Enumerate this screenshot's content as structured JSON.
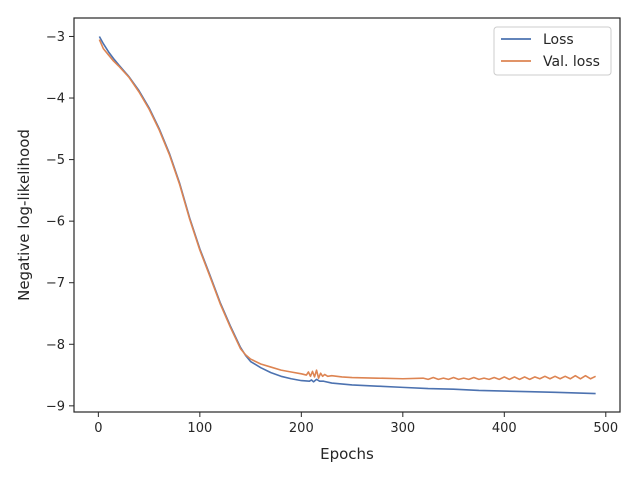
{
  "chart_data": {
    "type": "line",
    "title": "",
    "xlabel": "Epochs",
    "ylabel": "Negative log-likelihood",
    "xlim": [
      -24,
      514
    ],
    "ylim": [
      -9.1,
      -2.7
    ],
    "xticks": [
      0,
      100,
      200,
      300,
      400,
      500
    ],
    "yticks": [
      -9,
      -8,
      -7,
      -6,
      -5,
      -4,
      -3
    ],
    "tick_labels_x": [
      "0",
      "100",
      "200",
      "300",
      "400",
      "500"
    ],
    "tick_labels_y": [
      "−9",
      "−8",
      "−7",
      "−6",
      "−5",
      "−4",
      "−3"
    ],
    "grid": false,
    "legend_position": "top-right",
    "series": [
      {
        "name": "Loss",
        "color": "#4c72b0",
        "points": [
          [
            1,
            -3.0
          ],
          [
            5,
            -3.12
          ],
          [
            10,
            -3.25
          ],
          [
            15,
            -3.36
          ],
          [
            20,
            -3.46
          ],
          [
            30,
            -3.65
          ],
          [
            40,
            -3.88
          ],
          [
            50,
            -4.16
          ],
          [
            60,
            -4.5
          ],
          [
            70,
            -4.9
          ],
          [
            80,
            -5.38
          ],
          [
            90,
            -5.95
          ],
          [
            100,
            -6.45
          ],
          [
            110,
            -6.88
          ],
          [
            120,
            -7.32
          ],
          [
            130,
            -7.7
          ],
          [
            140,
            -8.05
          ],
          [
            145,
            -8.18
          ],
          [
            150,
            -8.28
          ],
          [
            160,
            -8.38
          ],
          [
            170,
            -8.46
          ],
          [
            180,
            -8.52
          ],
          [
            190,
            -8.56
          ],
          [
            200,
            -8.59
          ],
          [
            208,
            -8.6
          ],
          [
            210,
            -8.58
          ],
          [
            212,
            -8.61
          ],
          [
            215,
            -8.57
          ],
          [
            218,
            -8.6
          ],
          [
            222,
            -8.6
          ],
          [
            230,
            -8.63
          ],
          [
            250,
            -8.66
          ],
          [
            275,
            -8.68
          ],
          [
            300,
            -8.7
          ],
          [
            325,
            -8.72
          ],
          [
            350,
            -8.73
          ],
          [
            375,
            -8.75
          ],
          [
            400,
            -8.76
          ],
          [
            425,
            -8.77
          ],
          [
            450,
            -8.78
          ],
          [
            470,
            -8.79
          ],
          [
            490,
            -8.8
          ]
        ]
      },
      {
        "name": "Val. loss",
        "color": "#dd8452",
        "points": [
          [
            1,
            -3.05
          ],
          [
            5,
            -3.2
          ],
          [
            10,
            -3.3
          ],
          [
            15,
            -3.4
          ],
          [
            20,
            -3.48
          ],
          [
            30,
            -3.66
          ],
          [
            40,
            -3.9
          ],
          [
            50,
            -4.18
          ],
          [
            60,
            -4.52
          ],
          [
            70,
            -4.92
          ],
          [
            80,
            -5.4
          ],
          [
            90,
            -5.97
          ],
          [
            100,
            -6.47
          ],
          [
            110,
            -6.9
          ],
          [
            120,
            -7.34
          ],
          [
            130,
            -7.72
          ],
          [
            140,
            -8.07
          ],
          [
            145,
            -8.17
          ],
          [
            150,
            -8.24
          ],
          [
            160,
            -8.32
          ],
          [
            170,
            -8.37
          ],
          [
            180,
            -8.42
          ],
          [
            190,
            -8.45
          ],
          [
            200,
            -8.48
          ],
          [
            205,
            -8.5
          ],
          [
            207,
            -8.45
          ],
          [
            209,
            -8.52
          ],
          [
            211,
            -8.44
          ],
          [
            213,
            -8.53
          ],
          [
            215,
            -8.42
          ],
          [
            217,
            -8.55
          ],
          [
            219,
            -8.47
          ],
          [
            221,
            -8.52
          ],
          [
            223,
            -8.49
          ],
          [
            226,
            -8.52
          ],
          [
            230,
            -8.51
          ],
          [
            240,
            -8.53
          ],
          [
            250,
            -8.54
          ],
          [
            275,
            -8.55
          ],
          [
            300,
            -8.56
          ],
          [
            320,
            -8.55
          ],
          [
            325,
            -8.57
          ],
          [
            330,
            -8.54
          ],
          [
            335,
            -8.57
          ],
          [
            340,
            -8.55
          ],
          [
            345,
            -8.57
          ],
          [
            350,
            -8.54
          ],
          [
            355,
            -8.57
          ],
          [
            360,
            -8.55
          ],
          [
            365,
            -8.57
          ],
          [
            370,
            -8.54
          ],
          [
            375,
            -8.57
          ],
          [
            380,
            -8.55
          ],
          [
            385,
            -8.57
          ],
          [
            390,
            -8.54
          ],
          [
            395,
            -8.57
          ],
          [
            400,
            -8.53
          ],
          [
            405,
            -8.57
          ],
          [
            410,
            -8.53
          ],
          [
            415,
            -8.57
          ],
          [
            420,
            -8.53
          ],
          [
            425,
            -8.57
          ],
          [
            430,
            -8.53
          ],
          [
            435,
            -8.56
          ],
          [
            440,
            -8.52
          ],
          [
            445,
            -8.56
          ],
          [
            450,
            -8.52
          ],
          [
            455,
            -8.56
          ],
          [
            460,
            -8.52
          ],
          [
            465,
            -8.56
          ],
          [
            470,
            -8.51
          ],
          [
            475,
            -8.56
          ],
          [
            480,
            -8.51
          ],
          [
            485,
            -8.56
          ],
          [
            490,
            -8.52
          ]
        ]
      }
    ]
  }
}
